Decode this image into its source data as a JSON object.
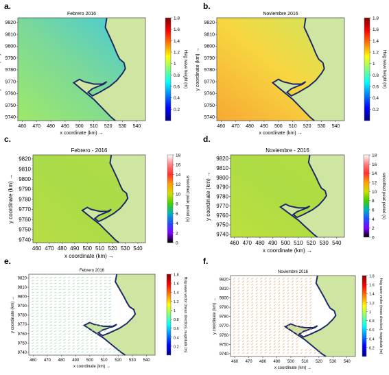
{
  "chart_data": [
    {
      "letter": "a.",
      "type": "heatmap",
      "title": "Febrero 2016",
      "xlabel": "x coordinate (km) →",
      "ylabel": "y coordinate (km) →",
      "xticks": [
        "460",
        "470",
        "480",
        "490",
        "500",
        "510",
        "520",
        "530",
        "540"
      ],
      "yticks": [
        "9820",
        "9810",
        "9800",
        "9790",
        "9780",
        "9770",
        "9760",
        "9750",
        "9740"
      ],
      "xlim": [
        457,
        546
      ],
      "ylim": [
        9737,
        9824
      ],
      "colorbar": {
        "label": "Hsig wave height (m)",
        "ticks": [
          "1.8",
          "1.6",
          "1.4",
          "1.2",
          "1",
          "0.8",
          "0.6",
          "0.4",
          "0.2"
        ],
        "range": [
          0,
          1.8
        ],
        "scheme": "jet"
      },
      "field": {
        "color_stops": [
          "#9ee86a",
          "#7ad89a",
          "#40c8e0"
        ],
        "value_range": "0.6–1.0 m"
      }
    },
    {
      "letter": "b.",
      "type": "heatmap",
      "title": "Noviembre 2016",
      "xlabel": "x coordinate (km) →",
      "ylabel": "y coordinate (km) →",
      "xticks": [
        "460",
        "470",
        "480",
        "490",
        "500",
        "510",
        "520",
        "530",
        "540"
      ],
      "yticks": [
        "9820",
        "9810",
        "9800",
        "9790",
        "9780",
        "9770",
        "9760",
        "9750",
        "9740"
      ],
      "xlim": [
        457,
        546
      ],
      "ylim": [
        9737,
        9824
      ],
      "colorbar": {
        "label": "Hsig wave height (m)",
        "ticks": [
          "1.8",
          "1.6",
          "1.4",
          "1.2",
          "1",
          "0.8",
          "0.6",
          "0.4",
          "0.2"
        ],
        "range": [
          0,
          1.8
        ],
        "scheme": "jet"
      },
      "field": {
        "color_stops": [
          "#f7a833",
          "#f7d640",
          "#c8e860"
        ],
        "value_range": "1.1–1.4 m"
      }
    },
    {
      "letter": "c.",
      "type": "heatmap",
      "title": "Febrero - 2016",
      "xlabel": "x coordinate (km) →",
      "ylabel": "y coordinate (km) →",
      "xticks": [
        "460",
        "470",
        "480",
        "490",
        "500",
        "510",
        "520",
        "530",
        "540"
      ],
      "yticks": [
        "9820",
        "9810",
        "9800",
        "9790",
        "9780",
        "9770",
        "9760",
        "9750",
        "9740"
      ],
      "xlim": [
        457,
        546
      ],
      "ylim": [
        9737,
        9824
      ],
      "colorbar": {
        "label": "smoothed peak period (s)",
        "ticks": [
          "18",
          "16",
          "14",
          "12",
          "10",
          "8",
          "6",
          "4",
          "2",
          "0"
        ],
        "range": [
          0,
          18
        ],
        "scheme": "hsv"
      },
      "field": {
        "color_stops": [
          "#b8dd45",
          "#aadb48",
          "#b2dc4a"
        ],
        "value_range": "≈10 s"
      }
    },
    {
      "letter": "d.",
      "type": "heatmap",
      "title": "Noviembre - 2016",
      "xlabel": "x coordinate (km) →",
      "ylabel": "y coordinate (km) →",
      "xticks": [
        "460",
        "470",
        "480",
        "490",
        "500",
        "510",
        "520",
        "530",
        "540"
      ],
      "yticks": [
        "9820",
        "9810",
        "9800",
        "9790",
        "9780",
        "9770",
        "9760",
        "9750",
        "9740"
      ],
      "xlim": [
        457,
        546
      ],
      "ylim": [
        9737,
        9824
      ],
      "colorbar": {
        "label": "smoothed peak period (s)",
        "ticks": [
          "18",
          "16",
          "14",
          "12",
          "10",
          "8",
          "6",
          "4",
          "2",
          "0"
        ],
        "range": [
          0,
          18
        ],
        "scheme": "hsv"
      },
      "field": {
        "color_stops": [
          "#bde03e",
          "#aedc44",
          "#b5de41"
        ],
        "value_range": "≈10 s"
      }
    },
    {
      "letter": "e.",
      "type": "quiver",
      "title": "Febrero 2016",
      "xlabel": "x coordinate (km) →",
      "ylabel": "y coordinate (km) →",
      "xticks": [
        "460",
        "470",
        "480",
        "490",
        "500",
        "510",
        "520",
        "530",
        "540"
      ],
      "yticks": [
        "9820",
        "9810",
        "9800",
        "9790",
        "9780",
        "9770",
        "9760",
        "9750",
        "9740"
      ],
      "xlim": [
        457,
        546
      ],
      "ylim": [
        9737,
        9824
      ],
      "colorbar": {
        "label": "Hsig wave vector (mean direction), magnitude (m)",
        "ticks": [
          "1.8",
          "1.6",
          "1.4",
          "1.2",
          "1",
          "0.8",
          "0.6",
          "0.4",
          "0.2"
        ],
        "range": [
          0,
          1.8
        ],
        "scheme": "jet"
      },
      "field": {
        "mean_direction": "toward NE/E",
        "arrow_color": "#9fd8b0"
      }
    },
    {
      "letter": "f.",
      "type": "quiver",
      "title": "Noviembre 2016",
      "xlabel": "x coordinate (km) →",
      "ylabel": "y coordinate (km) →",
      "xticks": [
        "460",
        "470",
        "480",
        "490",
        "500",
        "510",
        "520",
        "530",
        "540"
      ],
      "yticks": [
        "9820",
        "9810",
        "9800",
        "9790",
        "9780",
        "9770",
        "9760",
        "9750",
        "9740"
      ],
      "xlim": [
        457,
        546
      ],
      "ylim": [
        9737,
        9824
      ],
      "colorbar": {
        "label": "Hsig wave vector (mean direction), magnitude (m)",
        "ticks": [
          "1.8",
          "1.6",
          "1.4",
          "1.2",
          "1",
          "0.8",
          "0.6",
          "0.4",
          "0.2"
        ],
        "range": [
          0,
          1.8
        ],
        "scheme": "jet"
      },
      "field": {
        "mean_direction": "toward NE",
        "arrow_color": "#e9b07a"
      }
    }
  ],
  "land_color": "#cfe5a2",
  "coast_color": "#1d2a66"
}
